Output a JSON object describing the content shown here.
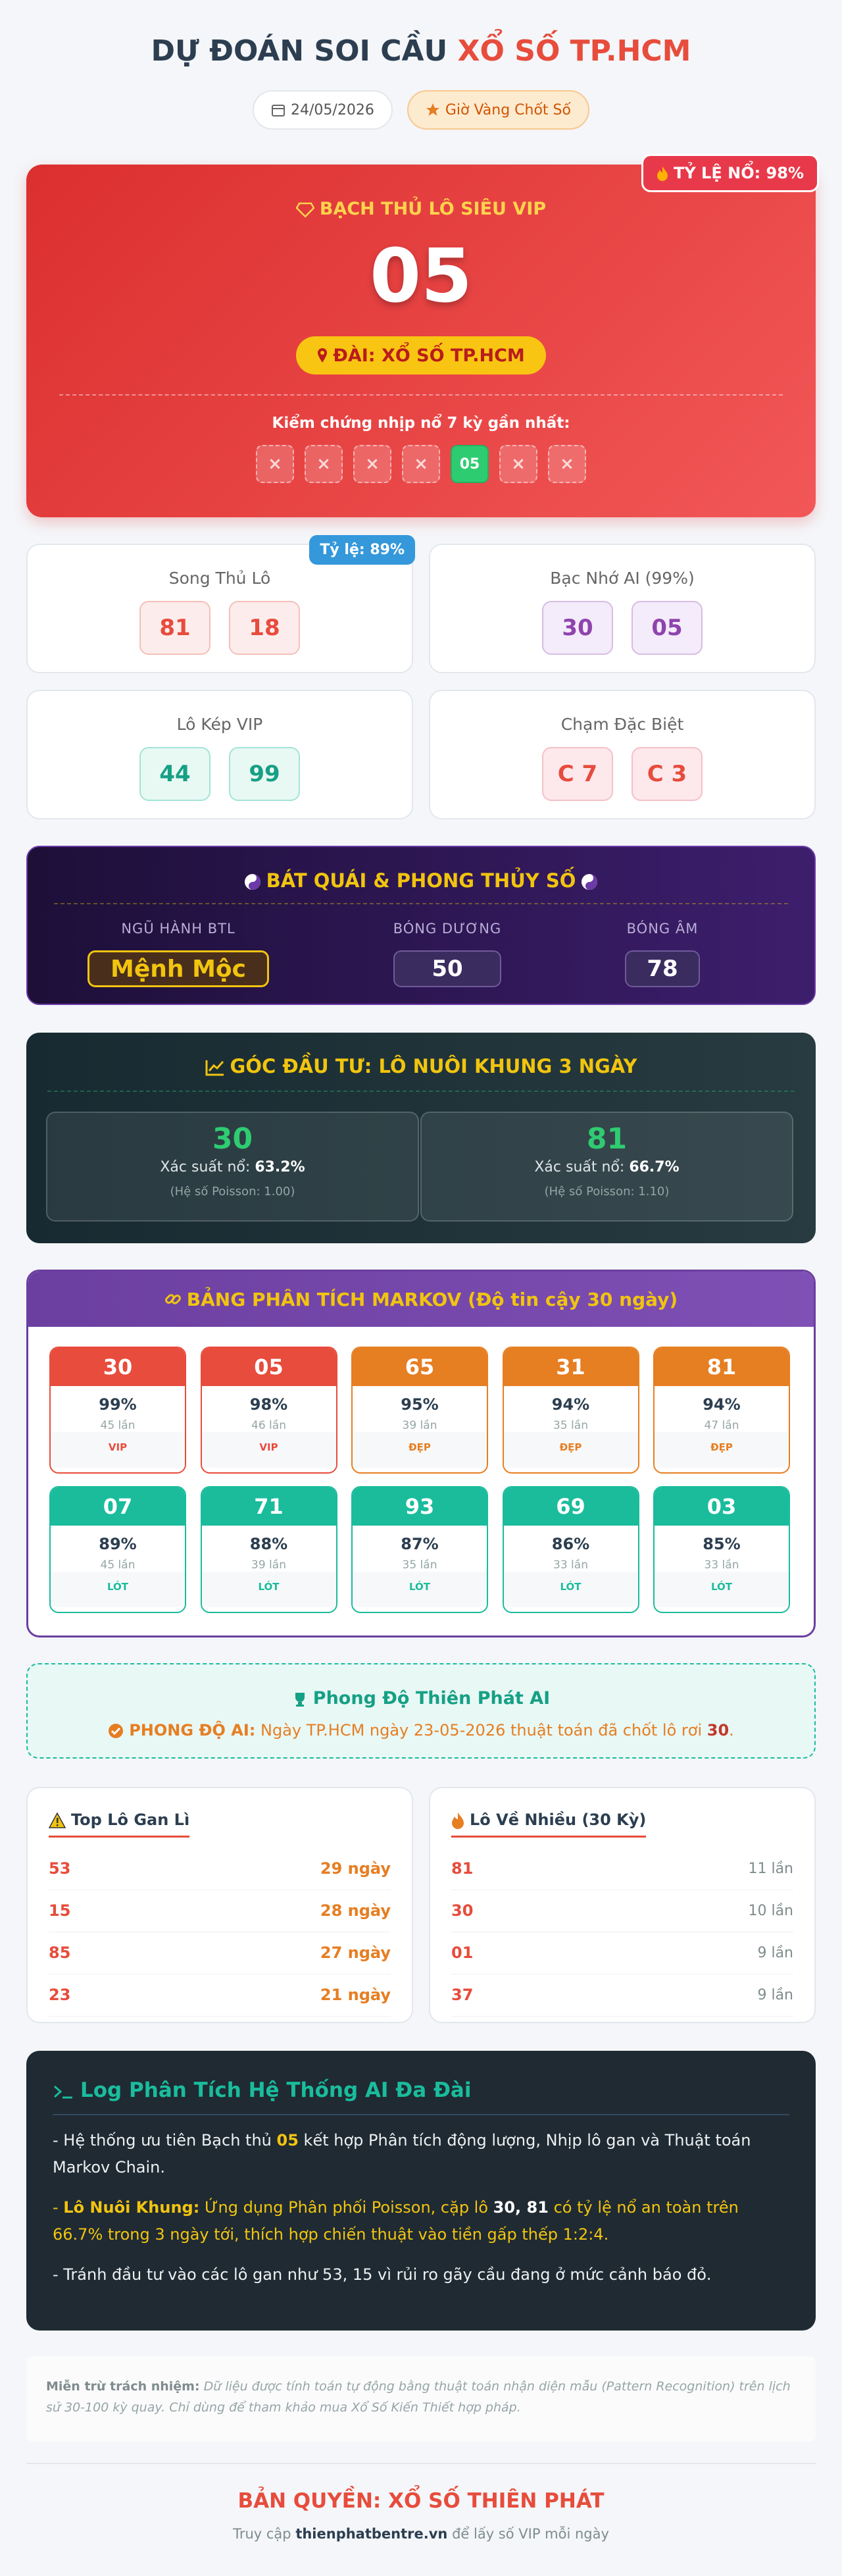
{
  "header": {
    "title": "DỰ ĐOÁN SOI CẦU",
    "title_highlight": "XỔ SỐ TP.HCM",
    "date": "24/05/2026",
    "badge": "Giờ Vàng Chốt Số"
  },
  "hero": {
    "rate_badge": "TỶ LỆ NỔ: 98%",
    "label": "BẠCH THỦ LÔ SIÊU VIP",
    "number": "05",
    "station": "ĐÀI: XỔ SỐ TP.HCM",
    "history_title": "Kiểm chứng nhịp nổ 7 kỳ gần nhất:",
    "history": [
      {
        "text": "×",
        "hit": false
      },
      {
        "text": "×",
        "hit": false
      },
      {
        "text": "×",
        "hit": false
      },
      {
        "text": "×",
        "hit": false
      },
      {
        "text": "05",
        "hit": true
      },
      {
        "text": "×",
        "hit": false
      },
      {
        "text": "×",
        "hit": false
      }
    ]
  },
  "cards": [
    {
      "title": "Song Thủ Lô",
      "badge": "Tỷ lệ: 89%",
      "numbers": [
        "81",
        "18"
      ]
    },
    {
      "title": "Bạc Nhớ AI (99%)",
      "numbers": [
        "30",
        "05"
      ]
    },
    {
      "title": "Lô Kép VIP",
      "numbers": [
        "44",
        "99"
      ]
    },
    {
      "title": "Chạm Đặc Biệt",
      "numbers": [
        "C 7",
        "C 3"
      ]
    }
  ],
  "bat_quai": {
    "title": "BÁT QUÁI & PHONG THỦY SỐ",
    "items": [
      {
        "label": "NGŨ HÀNH BTL",
        "value": "Mệnh Mộc"
      },
      {
        "label": "BÓNG DƯƠNG",
        "value": "50"
      },
      {
        "label": "BÓNG ÂM",
        "value": "78"
      }
    ]
  },
  "invest": {
    "title": "GÓC ĐẦU TƯ: LÔ NUÔI KHUNG 3 NGÀY",
    "items": [
      {
        "number": "30",
        "prob_label": "Xác suất nổ:",
        "prob": "63.2%",
        "note": "(Hệ số Poisson: 1.00)"
      },
      {
        "number": "81",
        "prob_label": "Xác suất nổ:",
        "prob": "66.7%",
        "note": "(Hệ số Poisson: 1.10)"
      }
    ]
  },
  "markov": {
    "title": "BẢNG PHÂN TÍCH MARKOV (Độ tin cậy 30 ngày)",
    "cards": [
      {
        "number": "30",
        "percent": "99%",
        "count": "45 lần",
        "tag": "VIP",
        "color": "#e74c3c"
      },
      {
        "number": "05",
        "percent": "98%",
        "count": "46 lần",
        "tag": "VIP",
        "color": "#e74c3c"
      },
      {
        "number": "65",
        "percent": "95%",
        "count": "39 lần",
        "tag": "ĐẸP",
        "color": "#e67e22"
      },
      {
        "number": "31",
        "percent": "94%",
        "count": "35 lần",
        "tag": "ĐẸP",
        "color": "#e67e22"
      },
      {
        "number": "81",
        "percent": "94%",
        "count": "47 lần",
        "tag": "ĐẸP",
        "color": "#e67e22"
      },
      {
        "number": "07",
        "percent": "89%",
        "count": "45 lần",
        "tag": "LÓT",
        "color": "#1abc9c"
      },
      {
        "number": "71",
        "percent": "88%",
        "count": "39 lần",
        "tag": "LÓT",
        "color": "#1abc9c"
      },
      {
        "number": "93",
        "percent": "87%",
        "count": "35 lần",
        "tag": "LÓT",
        "color": "#1abc9c"
      },
      {
        "number": "69",
        "percent": "86%",
        "count": "33 lần",
        "tag": "LÓT",
        "color": "#1abc9c"
      },
      {
        "number": "03",
        "percent": "85%",
        "count": "33 lần",
        "tag": "LÓT",
        "color": "#1abc9c"
      }
    ]
  },
  "form": {
    "title": "Phong Độ Thiên Phát AI",
    "label": "PHONG ĐỘ AI:",
    "text": "Ngày TP.HCM ngày 23-05-2026 thuật toán đã chốt lô rơi",
    "highlight": "30",
    "end": "."
  },
  "gan": {
    "title": "Top Lô Gan Lì",
    "rows": [
      [
        "53",
        "29 ngày"
      ],
      [
        "15",
        "28 ngày"
      ],
      [
        "85",
        "27 ngày"
      ],
      [
        "23",
        "21 ngày"
      ]
    ]
  },
  "hot": {
    "title": "Lô Về Nhiều (30 Kỳ)",
    "rows": [
      [
        "81",
        "11 lần"
      ],
      [
        "30",
        "10 lần"
      ],
      [
        "01",
        "9 lần"
      ],
      [
        "37",
        "9 lần"
      ]
    ]
  },
  "log": {
    "title": "Log Phân Tích Hệ Thống AI Đa Đài",
    "paragraphs": [
      {
        "style": "plain",
        "segments": [
          {
            "text": "- Hệ thống ưu tiên Bạch thủ ",
            "style": "plain"
          },
          {
            "text": "05",
            "style": "gold"
          },
          {
            "text": " kết hợp Phân tích động lượng, Nhịp lô gan và Thuật toán Markov Chain.",
            "style": "plain"
          }
        ]
      },
      {
        "style": "yellow",
        "segments": [
          {
            "text": "- ",
            "style": "plain"
          },
          {
            "text": "Lô Nuôi Khung:",
            "style": "bold"
          },
          {
            "text": " Ứng dụng Phân phối Poisson, cặp lô ",
            "style": "plain"
          },
          {
            "text": "30, 81",
            "style": "white"
          },
          {
            "text": " có tỷ lệ nổ an toàn trên 66.7% trong 3 ngày tới, thích hợp chiến thuật vào tiền gấp thếp 1:2:4.",
            "style": "plain"
          }
        ]
      },
      {
        "style": "plain",
        "segments": [
          {
            "text": "- Tránh đầu tư vào các lô gan như 53, 15 vì rủi ro gãy cầu đang ở mức cảnh báo đỏ.",
            "style": "plain"
          }
        ]
      }
    ]
  },
  "disclaimer": {
    "label": "Miễn trừ trách nhiệm:",
    "text": "Dữ liệu được tính toán tự động bằng thuật toán nhận diện mẫu (Pattern Recognition) trên lịch sử 30-100 kỳ quay. Chỉ dùng để tham khảo mua Xổ Số Kiến Thiết hợp pháp."
  },
  "footer": {
    "copyright": "BẢN QUYỀN: XỔ SỐ THIÊN PHÁT",
    "visit_prefix": "Truy cập",
    "site": "thienphatbentre.vn",
    "visit_suffix": "để lấy số VIP mỗi ngày"
  }
}
